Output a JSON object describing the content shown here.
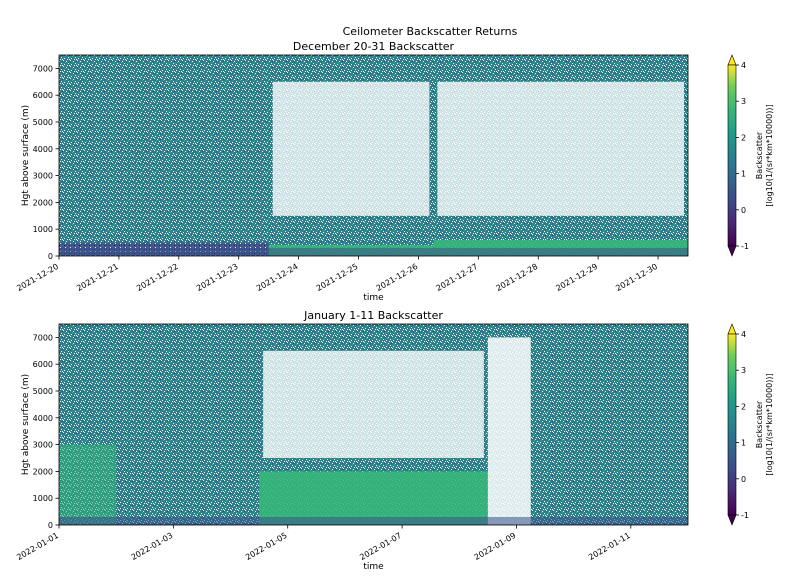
{
  "suptitle": "Ceilometer Backscatter Returns",
  "chart_data": [
    {
      "type": "heatmap",
      "title": "December 20-31 Backscatter",
      "xlabel": "time",
      "ylabel": "Hgt above surface (m)",
      "x_type": "date",
      "xlim": [
        "2021-12-20",
        "2021-12-30T12:00"
      ],
      "ylim": [
        0,
        7500
      ],
      "xticks": [
        "2021-12-20",
        "2021-12-21",
        "2021-12-22",
        "2021-12-23",
        "2021-12-24",
        "2021-12-25",
        "2021-12-26",
        "2021-12-27",
        "2021-12-28",
        "2021-12-29",
        "2021-12-30"
      ],
      "yticks": [
        0,
        1000,
        2000,
        3000,
        4000,
        5000,
        6000,
        7000
      ],
      "colorbar": {
        "label": "Backscatter\n[log10(1/(sr*km*10000))]",
        "vmin": -1,
        "vmax": 4,
        "ticks": [
          -1,
          0,
          1,
          2,
          3,
          4
        ],
        "cmap": "viridis",
        "extend": "both"
      },
      "features": [
        {
          "x": "2021-12-20T00:00",
          "x_end": "2021-12-23T12:00",
          "low_cloud_top_m": 500,
          "note": "dense surface layer, no clear sky"
        },
        {
          "x": "2021-12-23T12:00",
          "x_end": "2021-12-26T06:00",
          "low_cloud_top_m": 400,
          "clear_above_m": 1500
        },
        {
          "x": "2021-12-26T06:00",
          "x_end": "2021-12-30T12:00",
          "low_cloud_top_m": 600,
          "clear_above_m": 1500
        }
      ]
    },
    {
      "type": "heatmap",
      "title": "January 1-11 Backscatter",
      "xlabel": "time",
      "ylabel": "Hgt above surface (m)",
      "x_type": "date",
      "xlim": [
        "2022-01-01",
        "2022-01-12"
      ],
      "ylim": [
        0,
        7500
      ],
      "xticks": [
        "2022-01-01",
        "2022-01-03",
        "2022-01-05",
        "2022-01-07",
        "2022-01-09",
        "2022-01-11"
      ],
      "yticks": [
        0,
        1000,
        2000,
        3000,
        4000,
        5000,
        6000,
        7000
      ],
      "colorbar": {
        "label": "Backscatter\n[log10(1/(sr*km*10000))]",
        "vmin": -1,
        "vmax": 4,
        "ticks": [
          -1,
          0,
          1,
          2,
          3,
          4
        ],
        "cmap": "viridis",
        "extend": "both"
      },
      "features": [
        {
          "x": "2022-01-01T00:00",
          "x_end": "2022-01-02T00:00",
          "high_return_m": 3000
        },
        {
          "x": "2022-01-04T12:00",
          "x_end": "2022-01-08T12:00",
          "low_cloud_top_m": 2000,
          "clear_above_m": 2500
        },
        {
          "x": "2022-01-08T12:00",
          "x_end": "2022-01-09T06:00",
          "clear_gap": true
        }
      ]
    }
  ]
}
